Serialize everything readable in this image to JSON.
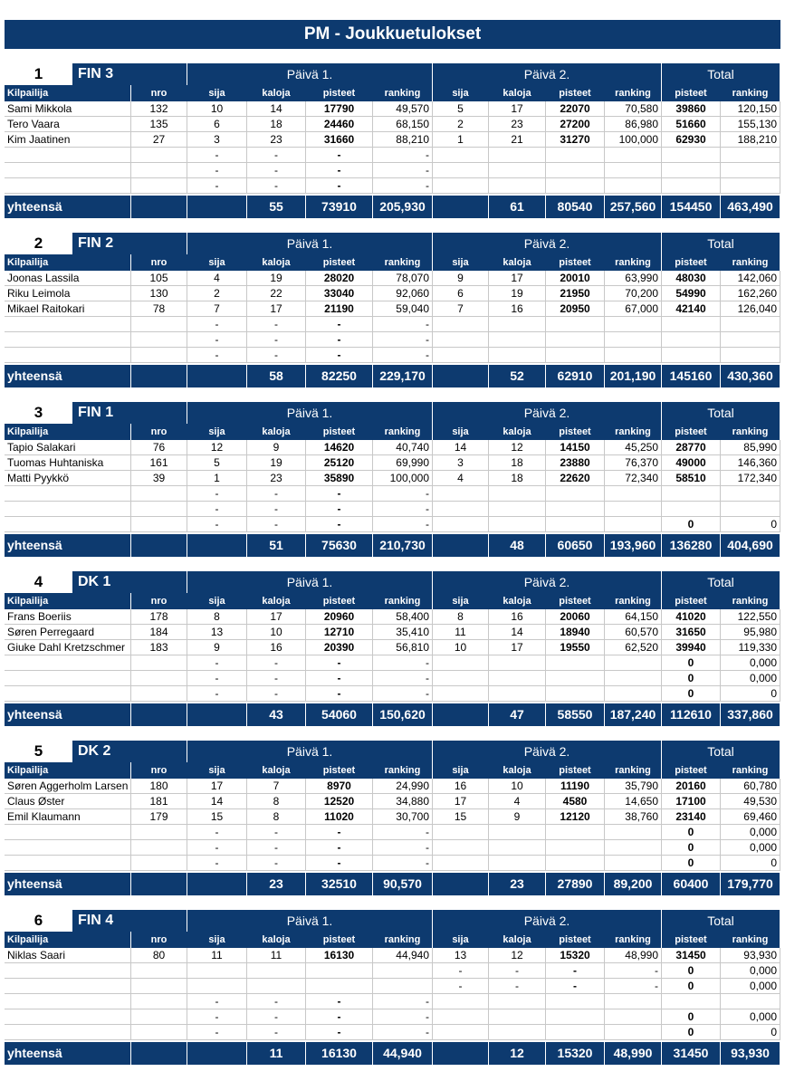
{
  "title": "PM - Joukkuetulokset",
  "day1": "Päivä 1.",
  "day2": "Päivä 2.",
  "total": "Total",
  "total_label": "yhteensä",
  "columns": [
    "Kilpailija",
    "nro",
    "sija",
    "kaloja",
    "pisteet",
    "ranking",
    "sija",
    "kaloja",
    "pisteet",
    "ranking",
    "pisteet",
    "ranking"
  ],
  "teams": [
    {
      "number": "1",
      "name": "FIN 3",
      "rows": [
        [
          "Sami Mikkola",
          "132",
          "10",
          "14",
          "17790",
          "49,570",
          "5",
          "17",
          "22070",
          "70,580",
          "39860",
          "120,150"
        ],
        [
          "Tero Vaara",
          "135",
          "6",
          "18",
          "24460",
          "68,150",
          "2",
          "23",
          "27200",
          "86,980",
          "51660",
          "155,130"
        ],
        [
          "Kim Jaatinen",
          "27",
          "3",
          "23",
          "31660",
          "88,210",
          "1",
          "21",
          "31270",
          "100,000",
          "62930",
          "188,210"
        ],
        [
          null,
          null,
          "-",
          "-",
          "-",
          "-",
          null,
          null,
          null,
          null,
          null,
          null
        ],
        [
          null,
          null,
          "-",
          "-",
          "-",
          "-",
          null,
          null,
          null,
          null,
          null,
          null
        ],
        [
          null,
          null,
          "-",
          "-",
          "-",
          "-",
          null,
          null,
          null,
          null,
          null,
          null
        ]
      ],
      "totals": [
        null,
        null,
        null,
        "55",
        "73910",
        "205,930",
        null,
        "61",
        "80540",
        "257,560",
        "154450",
        "463,490"
      ]
    },
    {
      "number": "2",
      "name": "FIN 2",
      "rows": [
        [
          "Joonas Lassila",
          "105",
          "4",
          "19",
          "28020",
          "78,070",
          "9",
          "17",
          "20010",
          "63,990",
          "48030",
          "142,060"
        ],
        [
          "Riku Leimola",
          "130",
          "2",
          "22",
          "33040",
          "92,060",
          "6",
          "19",
          "21950",
          "70,200",
          "54990",
          "162,260"
        ],
        [
          "Mikael Raitokari",
          "78",
          "7",
          "17",
          "21190",
          "59,040",
          "7",
          "16",
          "20950",
          "67,000",
          "42140",
          "126,040"
        ],
        [
          null,
          null,
          "-",
          "-",
          "-",
          "-",
          null,
          null,
          null,
          null,
          null,
          null
        ],
        [
          null,
          null,
          "-",
          "-",
          "-",
          "-",
          null,
          null,
          null,
          null,
          null,
          null
        ],
        [
          null,
          null,
          "-",
          "-",
          "-",
          "-",
          null,
          null,
          null,
          null,
          null,
          null
        ]
      ],
      "totals": [
        null,
        null,
        null,
        "58",
        "82250",
        "229,170",
        null,
        "52",
        "62910",
        "201,190",
        "145160",
        "430,360"
      ]
    },
    {
      "number": "3",
      "name": "FIN 1",
      "rows": [
        [
          "Tapio Salakari",
          "76",
          "12",
          "9",
          "14620",
          "40,740",
          "14",
          "12",
          "14150",
          "45,250",
          "28770",
          "85,990"
        ],
        [
          "Tuomas Huhtaniska",
          "161",
          "5",
          "19",
          "25120",
          "69,990",
          "3",
          "18",
          "23880",
          "76,370",
          "49000",
          "146,360"
        ],
        [
          "Matti Pyykkö",
          "39",
          "1",
          "23",
          "35890",
          "100,000",
          "4",
          "18",
          "22620",
          "72,340",
          "58510",
          "172,340"
        ],
        [
          null,
          null,
          "-",
          "-",
          "-",
          "-",
          null,
          null,
          null,
          null,
          null,
          null
        ],
        [
          null,
          null,
          "-",
          "-",
          "-",
          "-",
          null,
          null,
          null,
          null,
          null,
          null
        ],
        [
          null,
          null,
          "-",
          "-",
          "-",
          "-",
          null,
          null,
          null,
          null,
          "0",
          "0"
        ]
      ],
      "totals": [
        null,
        null,
        null,
        "51",
        "75630",
        "210,730",
        null,
        "48",
        "60650",
        "193,960",
        "136280",
        "404,690"
      ]
    },
    {
      "number": "4",
      "name": "DK 1",
      "rows": [
        [
          "Frans Boeriis",
          "178",
          "8",
          "17",
          "20960",
          "58,400",
          "8",
          "16",
          "20060",
          "64,150",
          "41020",
          "122,550"
        ],
        [
          "Søren Perregaard",
          "184",
          "13",
          "10",
          "12710",
          "35,410",
          "11",
          "14",
          "18940",
          "60,570",
          "31650",
          "95,980"
        ],
        [
          "Giuke Dahl Kretzschmer",
          "183",
          "9",
          "16",
          "20390",
          "56,810",
          "10",
          "17",
          "19550",
          "62,520",
          "39940",
          "119,330"
        ],
        [
          null,
          null,
          "-",
          "-",
          "-",
          "-",
          null,
          null,
          null,
          null,
          "0",
          "0,000"
        ],
        [
          null,
          null,
          "-",
          "-",
          "-",
          "-",
          null,
          null,
          null,
          null,
          "0",
          "0,000"
        ],
        [
          null,
          null,
          "-",
          "-",
          "-",
          "-",
          null,
          null,
          null,
          null,
          "0",
          "0"
        ]
      ],
      "totals": [
        null,
        null,
        null,
        "43",
        "54060",
        "150,620",
        null,
        "47",
        "58550",
        "187,240",
        "112610",
        "337,860"
      ]
    },
    {
      "number": "5",
      "name": "DK 2",
      "rows": [
        [
          "Søren Aggerholm Larsen",
          "180",
          "17",
          "7",
          "8970",
          "24,990",
          "16",
          "10",
          "11190",
          "35,790",
          "20160",
          "60,780"
        ],
        [
          "Claus Øster",
          "181",
          "14",
          "8",
          "12520",
          "34,880",
          "17",
          "4",
          "4580",
          "14,650",
          "17100",
          "49,530"
        ],
        [
          "Emil Klaumann",
          "179",
          "15",
          "8",
          "11020",
          "30,700",
          "15",
          "9",
          "12120",
          "38,760",
          "23140",
          "69,460"
        ],
        [
          null,
          null,
          "-",
          "-",
          "-",
          "-",
          null,
          null,
          null,
          null,
          "0",
          "0,000"
        ],
        [
          null,
          null,
          "-",
          "-",
          "-",
          "-",
          null,
          null,
          null,
          null,
          "0",
          "0,000"
        ],
        [
          null,
          null,
          "-",
          "-",
          "-",
          "-",
          null,
          null,
          null,
          null,
          "0",
          "0"
        ]
      ],
      "totals": [
        null,
        null,
        null,
        "23",
        "32510",
        "90,570",
        null,
        "23",
        "27890",
        "89,200",
        "60400",
        "179,770"
      ]
    },
    {
      "number": "6",
      "name": "FIN 4",
      "rows": [
        [
          "Niklas Saari",
          "80",
          "11",
          "11",
          "16130",
          "44,940",
          "13",
          "12",
          "15320",
          "48,990",
          "31450",
          "93,930"
        ],
        [
          null,
          null,
          null,
          null,
          null,
          null,
          "-",
          "-",
          "-",
          "-",
          "0",
          "0,000"
        ],
        [
          null,
          null,
          null,
          null,
          null,
          null,
          "-",
          "-",
          "-",
          "-",
          "0",
          "0,000"
        ],
        [
          null,
          null,
          "-",
          "-",
          "-",
          "-",
          null,
          null,
          null,
          null,
          null,
          null
        ],
        [
          null,
          null,
          "-",
          "-",
          "-",
          "-",
          null,
          null,
          null,
          null,
          "0",
          "0,000"
        ],
        [
          null,
          null,
          "-",
          "-",
          "-",
          "-",
          null,
          null,
          null,
          null,
          "0",
          "0"
        ]
      ],
      "totals": [
        null,
        null,
        null,
        "11",
        "16130",
        "44,940",
        null,
        "12",
        "15320",
        "48,990",
        "31450",
        "93,930"
      ]
    }
  ]
}
